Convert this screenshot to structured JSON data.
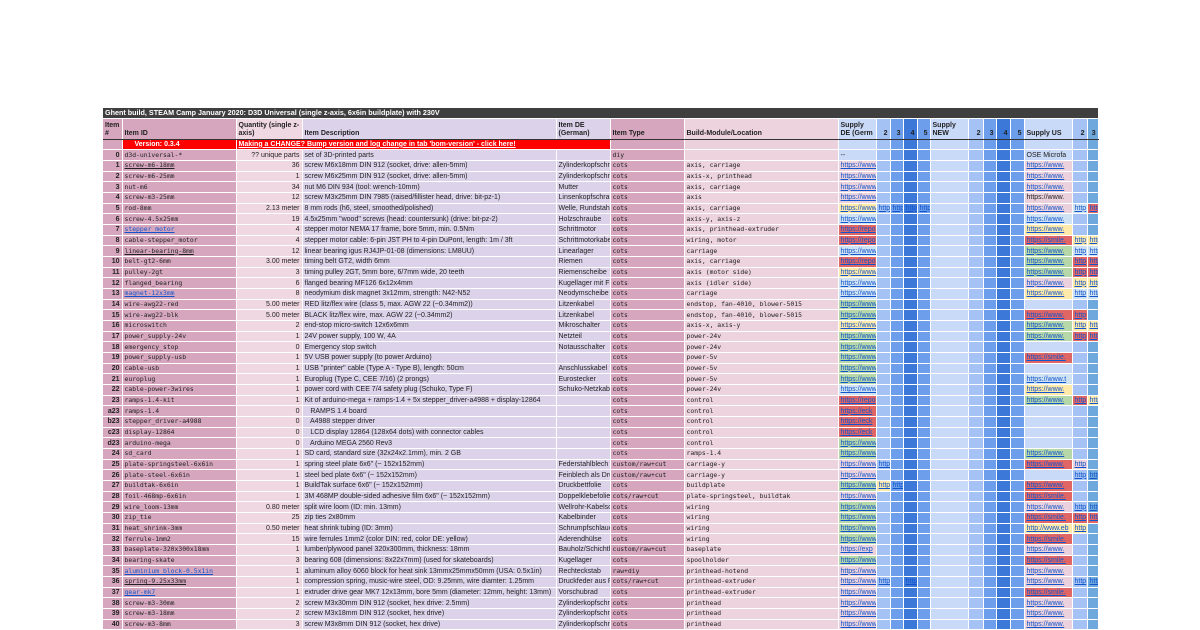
{
  "title": "Ghent build, STEAM Camp January 2020: D3D Universal (single z-axis, 6x6in buildplate) with 230V",
  "headers": [
    "Item #",
    "Item ID",
    "Quantity (single z-axis)",
    "Item Description",
    "Item DE (German)",
    "Item Type",
    "Build-Module/Location",
    "Supply DE (Germ",
    "2",
    "3",
    "4",
    "5",
    "Supply NEW",
    "2",
    "3",
    "4",
    "5",
    "Supply US",
    "2",
    "3"
  ],
  "version": {
    "label": "Version: 0.3.4",
    "change_link": "Making a CHANGE? Bump version and log change in tab 'bom-version' - click here!"
  },
  "colors": {
    "p": "#ead1dc",
    "g": "#b6d7a8",
    "y": "#ffe9a8",
    "r": "#e06666",
    "b": "#cfe2f3",
    "red": "#ff0000"
  },
  "rows": [
    {
      "n": "0",
      "id": "d3d-universal-*",
      "q": "?? unique parts",
      "d": "set of 3D-printed parts",
      "de": "",
      "t": "diy",
      "b": "",
      "s": {
        "7": [
          "--",
          ""
        ],
        "17": [
          "OSE Microfa",
          "",
          1
        ]
      }
    },
    {
      "n": "1",
      "id": "screw-m6-18mm",
      "idl": "d",
      "q": "36",
      "d": "screw M6x18mm DIN 912 (socket, drive: allen-5mm)",
      "de": "Zylinderkopfschraube",
      "t": "cots",
      "b": "axis, carriage",
      "s": {
        "7": [
          "https://www",
          "p"
        ],
        "17": [
          "https://www.",
          "p"
        ]
      }
    },
    {
      "n": "2",
      "id": "screw-m6-25mm",
      "q": "1",
      "d": "screw M6x25mm DIN 912 (socket, drive: allen-5mm)",
      "de": "Zylinderkopfschraube",
      "t": "cots",
      "b": "axis-x, printhead",
      "s": {
        "7": [
          "https://www",
          "p"
        ],
        "17": [
          "https://www.",
          "p"
        ]
      }
    },
    {
      "n": "3",
      "id": "nut-m6",
      "q": "34",
      "d": "nut M6 DIN 934 (tool: wrench-10mm)",
      "de": "Mutter",
      "t": "cots",
      "b": "axis, carriage",
      "s": {
        "7": [
          "https://www",
          "p"
        ],
        "17": [
          "https://www.",
          "p"
        ]
      }
    },
    {
      "n": "4",
      "id": "screw-m3-25mm",
      "q": "12",
      "d": "screw M3x25mm DIN 7985 (raised/fillister head, drive: bit-pz-1)",
      "de": "Linsenkopfschraube",
      "t": "cots",
      "b": "axis",
      "s": {
        "7": [
          "https://www",
          "p"
        ],
        "17": [
          "https://www.",
          "p",
          1
        ]
      }
    },
    {
      "n": "5",
      "id": "rod-8mm",
      "q": "2.13 meter",
      "d": "8 mm rods (h6, steel, smoothed/polished)",
      "de": "Welle, Rundstahl",
      "t": "cots",
      "b": "axis, carriage",
      "s": {
        "7": [
          "https://www",
          "y"
        ],
        "8": [
          "http",
          ""
        ],
        "9": [
          "http",
          ""
        ],
        "10": [
          "http",
          ""
        ],
        "11": [
          "http",
          ""
        ],
        "17": [
          "https://www.",
          "p"
        ],
        "18": [
          "http",
          "b"
        ],
        "19": [
          "http",
          "r"
        ]
      }
    },
    {
      "n": "6",
      "id": "screw-4.5x25mm",
      "q": "19",
      "d": "4.5x25mm \"wood\" screws (head: countersunk) (drive: bit-pz-2)",
      "de": "Holzschraube",
      "t": "cots",
      "b": "axis-y, axis-z",
      "s": {
        "7": [
          "https://www",
          "b"
        ],
        "17": [
          "https://www.",
          "b"
        ]
      }
    },
    {
      "n": "7",
      "id": "stepper_motor",
      "idl": "b",
      "q": "4",
      "d": "stepper motor NEMA 17 frame, bore 5mm, min. 0.5Nm",
      "de": "Schrittmotor",
      "t": "cots",
      "b": "axis, printhead-extruder",
      "s": {
        "7": [
          "https://repo",
          "r"
        ],
        "17": [
          "https://www.",
          "y"
        ]
      }
    },
    {
      "n": "8",
      "id": "cable-stepper_motor",
      "q": "4",
      "d": "stepper motor cable: 6-pin JST PH to 4-pin DuPont, length: 1m / 3ft",
      "de": "Schrittmotorkabel",
      "t": "cots",
      "b": "wiring, motor",
      "s": {
        "7": [
          "https://repo",
          "r"
        ],
        "17": [
          "https://smile.",
          "r"
        ],
        "18": [
          "http",
          "y"
        ],
        "19": [
          "http",
          "y"
        ]
      }
    },
    {
      "n": "9",
      "id": "linear-bearing-8mm",
      "idl": "d",
      "q": "12",
      "d": "linear bearing igus RJ4JP-01-08 (dimensions: LM8UU)",
      "de": "Linearlager",
      "t": "cots",
      "b": "carriage",
      "s": {
        "7": [
          "https://www",
          "b"
        ],
        "17": [
          "https://www.",
          "g"
        ],
        "18": [
          "http",
          "b"
        ],
        "19": [
          "http",
          "b"
        ]
      }
    },
    {
      "n": "10",
      "id": "belt-gt2-6mm",
      "q": "3.00 meter",
      "d": "timing belt GT2, width 6mm",
      "de": "Riemen",
      "t": "cots",
      "b": "axis, carriage",
      "s": {
        "7": [
          "https://repo",
          "r"
        ],
        "17": [
          "https://www.",
          "g"
        ],
        "18": [
          "http",
          "r"
        ],
        "19": [
          "http",
          "r"
        ]
      }
    },
    {
      "n": "11",
      "id": "pulley-2gt",
      "q": "3",
      "d": "timing pulley 2GT, 5mm bore, 6/7mm wide, 20 teeth",
      "de": "Riemenscheibe",
      "t": "cots",
      "b": "axis (motor side)",
      "s": {
        "7": [
          "https://www",
          "y"
        ],
        "17": [
          "https://www.",
          "g"
        ],
        "18": [
          "http",
          "r"
        ],
        "19": [
          "http",
          "r"
        ]
      }
    },
    {
      "n": "12",
      "id": "flanged_bearing",
      "q": "6",
      "d": "flanged bearing MF126 6x12x4mm",
      "de": "Kugellager mit Flansch",
      "t": "cots",
      "b": "axis (idler side)",
      "s": {
        "7": [
          "https://www",
          "b"
        ],
        "17": [
          "https://www.",
          "p"
        ],
        "18": [
          "http",
          "y"
        ],
        "19": [
          "http",
          "y"
        ]
      }
    },
    {
      "n": "13",
      "id": "magnet-12x3mm",
      "idl": "b",
      "q": "8",
      "d": "neodymium disk magnet 3x12mm, strength: N42-N52",
      "de": "Neodymscheibe",
      "t": "cots",
      "b": "carriage",
      "s": {
        "7": [
          "https://www",
          "b"
        ],
        "17": [
          "https://www.",
          "y"
        ],
        "18": [
          "http",
          "b"
        ],
        "19": [
          "http",
          "b"
        ]
      }
    },
    {
      "n": "14",
      "id": "wire-awg22-red",
      "q": "5.00 meter",
      "d": "RED litz/flex wire (class 5, max. AGW 22 (~0.34mm2))",
      "de": "Litzenkabel",
      "t": "cots",
      "b": "endstop, fan-4010, blower-5015",
      "s": {
        "7": [
          "https://www",
          "g"
        ]
      }
    },
    {
      "n": "15",
      "id": "wire-awg22-blk",
      "q": "5.00 meter",
      "d": "BLACK litz/flex wire, max. AGW 22 (~0.34mm2)",
      "de": "Litzenkabel",
      "t": "cots",
      "b": "endstop, fan-4010, blower-5015",
      "s": {
        "7": [
          "https://www",
          "g"
        ],
        "17": [
          "https://www.",
          "r"
        ],
        "18": [
          "http",
          "r"
        ]
      }
    },
    {
      "n": "16",
      "id": "microswitch",
      "q": "2",
      "d": "end-stop micro-switch 12x6x6mm",
      "de": "Mikroschalter",
      "t": "cots",
      "b": "axis-x, axis-y",
      "s": {
        "7": [
          "https://www",
          "y"
        ],
        "17": [
          "https://www.",
          "g"
        ],
        "18": [
          "http",
          "y"
        ],
        "19": [
          "http",
          "y"
        ]
      }
    },
    {
      "n": "17",
      "id": "power_supply-24v",
      "q": "1",
      "d": "24V power supply, 100 W, 4A",
      "de": "Netzteil",
      "t": "cots",
      "b": "power-24v",
      "s": {
        "7": [
          "https://www",
          "g"
        ],
        "17": [
          "https://www.",
          "g"
        ],
        "18": [
          "http",
          "r"
        ],
        "19": [
          "http",
          "r"
        ]
      }
    },
    {
      "n": "18",
      "id": "emergency_stop",
      "q": "0",
      "d": "Emergency stop switch",
      "de": "Notausschalter",
      "t": "cots",
      "b": "power-24v",
      "s": {
        "7": [
          "https://www",
          "g"
        ]
      }
    },
    {
      "n": "19",
      "id": "power_supply-usb",
      "q": "1",
      "d": "5V USB power supply (to power Arduino)",
      "de": "",
      "t": "cots",
      "b": "power-5v",
      "s": {
        "7": [
          "https://www",
          "g"
        ],
        "17": [
          "https://smile.",
          "r"
        ]
      }
    },
    {
      "n": "20",
      "id": "cable-usb",
      "q": "1",
      "d": "USB \"printer\" cable (Type A - Type B), length: 50cm",
      "de": "Anschlusskabel",
      "t": "cots",
      "b": "power-5v",
      "s": {
        "7": [
          "https://www",
          "g"
        ]
      }
    },
    {
      "n": "21",
      "id": "europlug",
      "q": "1",
      "d": "Europlug (Type C, CEE 7/16) (2 prongs)",
      "de": "Eurostecker",
      "t": "cots",
      "b": "power-5v",
      "s": {
        "7": [
          "https://www",
          "g"
        ],
        "17": [
          "https://www.t",
          "b"
        ]
      }
    },
    {
      "n": "22",
      "id": "cable-power-3wires",
      "q": "1",
      "d": "power cord with CEE 7/4 safety plug (Schuko, Type F)",
      "de": "Schuko-Netzkabel",
      "t": "cots",
      "b": "power-24v",
      "s": {
        "7": [
          "https://www",
          "b"
        ],
        "17": [
          "https://www.",
          "y"
        ]
      }
    },
    {
      "n": "23",
      "id": "ramps-1.4-kit",
      "q": "1",
      "d": "Kit of arduino-mega + ramps-1.4 + 5x stepper_driver-a4988 + display-12864",
      "de": "",
      "t": "cots",
      "b": "control",
      "s": {
        "7": [
          "https://repo",
          "r"
        ],
        "17": [
          "https://www.",
          "g"
        ],
        "18": [
          "http",
          "r"
        ],
        "19": [
          "http",
          "y"
        ]
      }
    },
    {
      "n": "a23",
      "id": "ramps-1.4",
      "q": "0",
      "d": "   RAMPS 1.4 board",
      "de": "",
      "t": "cots",
      "b": "control",
      "s": {
        "7": [
          "https://eck",
          "r"
        ]
      }
    },
    {
      "n": "b23",
      "id": "stepper_driver-a4988",
      "q": "0",
      "d": "   A4988 stepper driver",
      "de": "",
      "t": "cots",
      "b": "control",
      "s": {
        "7": [
          "https://eck",
          "r"
        ]
      }
    },
    {
      "n": "c23",
      "id": "display-12864",
      "q": "0",
      "d": "   LCD display 12864 (128x64 dots) with connector cables",
      "de": "",
      "t": "cots",
      "b": "control",
      "s": {
        "7": [
          "https://eck",
          "r"
        ]
      }
    },
    {
      "n": "d23",
      "id": "arduino-mega",
      "q": "0",
      "d": "   Arduino MEGA 2560 Rev3",
      "de": "",
      "t": "cots",
      "b": "control",
      "s": {
        "7": [
          "https://www",
          "g"
        ]
      }
    },
    {
      "n": "24",
      "id": "sd_card",
      "q": "1",
      "d": "SD card, standard size (32x24x2.1mm), min. 2 GB",
      "de": "",
      "t": "cots",
      "b": "ramps-1.4",
      "s": {
        "7": [
          "https://www",
          "g"
        ],
        "17": [
          "https://www.",
          "g"
        ]
      }
    },
    {
      "n": "25",
      "id": "plate-springsteel-6x6in",
      "q": "1",
      "d": "spring steel plate 6x6\" (~ 152x152mm)",
      "de": "Federstahlblech",
      "t": "custom/raw+cut",
      "b": "carriage-y",
      "s": {
        "7": [
          "https://www",
          "p"
        ],
        "8": [
          "http",
          ""
        ],
        "17": [
          "https://www.",
          "r"
        ],
        "18": [
          "http",
          "p"
        ]
      }
    },
    {
      "n": "26",
      "id": "plate-steel-6x6in",
      "q": "1",
      "d": "steel bed plate 6x6\" (~ 152x152mm)",
      "de": "Feinblech als Druckbett",
      "t": "custom/raw+cut",
      "b": "carriage-y",
      "s": {
        "7": [
          "https://www",
          "p"
        ],
        "18": [
          "http",
          ""
        ],
        "19": [
          "http",
          ""
        ]
      }
    },
    {
      "n": "27",
      "id": "buildtak-6x6in",
      "q": "1",
      "d": "BuildTak surface 6x6\" (~ 152x152mm)",
      "de": "Druckbettfolie",
      "t": "cots",
      "b": "buildplate",
      "s": {
        "7": [
          "https://www",
          "g"
        ],
        "8": [
          "http",
          "y"
        ],
        "9": [
          "http",
          ""
        ],
        "17": [
          "https://www.",
          "r"
        ]
      }
    },
    {
      "n": "28",
      "id": "foil-468mp-6x6in",
      "q": "1",
      "d": "3M 468MP double-sided adhesive film 6x6\" (~ 152x152mm)",
      "de": "Doppelklebefolie",
      "t": "cots/raw+cut",
      "b": "plate-springsteel, buildtak",
      "s": {
        "7": [
          "https://www",
          "p"
        ],
        "17": [
          "https://smile.",
          "r"
        ]
      }
    },
    {
      "n": "29",
      "id": "wire_loom-13mm",
      "q": "0.80 meter",
      "d": "split wire loom (ID: min. 13mm)",
      "de": "Wellrohr-Kabelschutz",
      "t": "cots",
      "b": "wiring",
      "s": {
        "7": [
          "https://www",
          "g"
        ],
        "17": [
          "https://www.",
          "p"
        ],
        "18": [
          "http",
          ""
        ],
        "19": [
          "http",
          ""
        ]
      }
    },
    {
      "n": "30",
      "id": "zip_tie",
      "q": "25",
      "d": "zip ties 2x80mm",
      "de": "Kabelbinder",
      "t": "cots",
      "b": "wiring",
      "s": {
        "7": [
          "https://www",
          "g"
        ],
        "17": [
          "https://smile.",
          "r"
        ],
        "18": [
          "http",
          "r"
        ],
        "19": [
          "http",
          "r"
        ]
      }
    },
    {
      "n": "31",
      "id": "heat_shrink-3mm",
      "q": "0.50 meter",
      "d": "heat shrink tubing (ID: 3mm)",
      "de": "Schrumpfschlauch",
      "t": "cots",
      "b": "wiring",
      "s": {
        "7": [
          "https://www",
          "g"
        ],
        "17": [
          "http://www.eb",
          "y"
        ],
        "18": [
          "http",
          "y"
        ]
      }
    },
    {
      "n": "32",
      "id": "ferrule-1mm2",
      "q": "15",
      "d": "wire ferrules 1mm2 (color DIN: red, color DE: yellow)",
      "de": "Aderendhülse",
      "t": "cots",
      "b": "wiring",
      "s": {
        "7": [
          "https://www",
          "g"
        ],
        "17": [
          "https://smile.",
          "r"
        ]
      }
    },
    {
      "n": "33",
      "id": "baseplate-320x300x18mm",
      "q": "1",
      "d": "lumber/plywood panel 320x300mm, thickness: 18mm",
      "de": "Bauholz/Schichtholz",
      "t": "custom/raw+cut",
      "b": "baseplate",
      "s": {
        "7": [
          "https://exp",
          "p"
        ],
        "17": [
          "https://www.",
          "p"
        ]
      }
    },
    {
      "n": "34",
      "id": "bearing-skate",
      "q": "3",
      "d": "bearing 608 (dimensions: 8x22x7mm) (used for skateboards)",
      "de": "Kugellager",
      "t": "cots",
      "b": "spoolholder",
      "s": {
        "7": [
          "https://www",
          "g"
        ],
        "17": [
          "https://smile.",
          "r"
        ]
      }
    },
    {
      "n": "35",
      "id": "aluminium_block-0.5x1in",
      "idl": "b",
      "q": "1",
      "d": "aluminum alloy 6060 block for heat sink 13mmx25mmx50mm (USA: 0.5x1in)",
      "de": "Rechteckstab",
      "t": "raw+diy",
      "b": "printhead-hotend",
      "s": {
        "7": [
          "https://www",
          "p"
        ],
        "17": [
          "https://www.",
          "p"
        ]
      }
    },
    {
      "n": "36",
      "id": "spring-9.25x33mm",
      "idl": "d",
      "q": "1",
      "d": "compression spring, music-wire steel, OD: 9.25mm, wire diamter: 1.25mm",
      "de": "Druckfeder aus Federstahl",
      "t": "cots/raw+cut",
      "b": "printhead-extruder",
      "s": {
        "7": [
          "https://www",
          "p"
        ],
        "8": [
          "http",
          ""
        ],
        "10": [
          "http",
          ""
        ],
        "17": [
          "https://www.",
          "p"
        ],
        "18": [
          "http",
          ""
        ],
        "19": [
          "http",
          ""
        ]
      }
    },
    {
      "n": "37",
      "id": "gear-mk7",
      "idl": "b",
      "q": "1",
      "d": "extruder drive gear MK7 12x13mm, bore 5mm (diameter: 12mm, height: 13mm)",
      "de": "Vorschubrad",
      "t": "cots",
      "b": "printhead-extruder",
      "s": {
        "7": [
          "https://www",
          "p"
        ],
        "17": [
          "https://smile.",
          "r"
        ]
      }
    },
    {
      "n": "38",
      "id": "screw-m3-30mm",
      "q": "2",
      "d": "screw M3x30mm DIN 912 (socket, hex drive: 2.5mm)",
      "de": "Zylinderkopfschraube",
      "t": "cots",
      "b": "printhead",
      "s": {
        "7": [
          "https://www",
          "p"
        ],
        "17": [
          "https://www.",
          "p"
        ]
      }
    },
    {
      "n": "39",
      "id": "screw-m3-18mm",
      "q": "2",
      "d": "screw M3x18mm DIN 912 (socket, hex drive)",
      "de": "Zylinderkopfschraube",
      "t": "cots",
      "b": "printhead",
      "s": {
        "7": [
          "https://www",
          "p"
        ],
        "17": [
          "https://www.",
          "p"
        ]
      }
    },
    {
      "n": "40",
      "id": "screw-m3-8mm",
      "q": "3",
      "d": "screw M3x8mm DIN 912 (socket, hex drive)",
      "de": "Zylinderkopfschraube",
      "t": "cots",
      "b": "printhead",
      "s": {
        "7": [
          "https://www",
          "p"
        ],
        "17": [
          "https://www.",
          "p"
        ]
      }
    }
  ]
}
